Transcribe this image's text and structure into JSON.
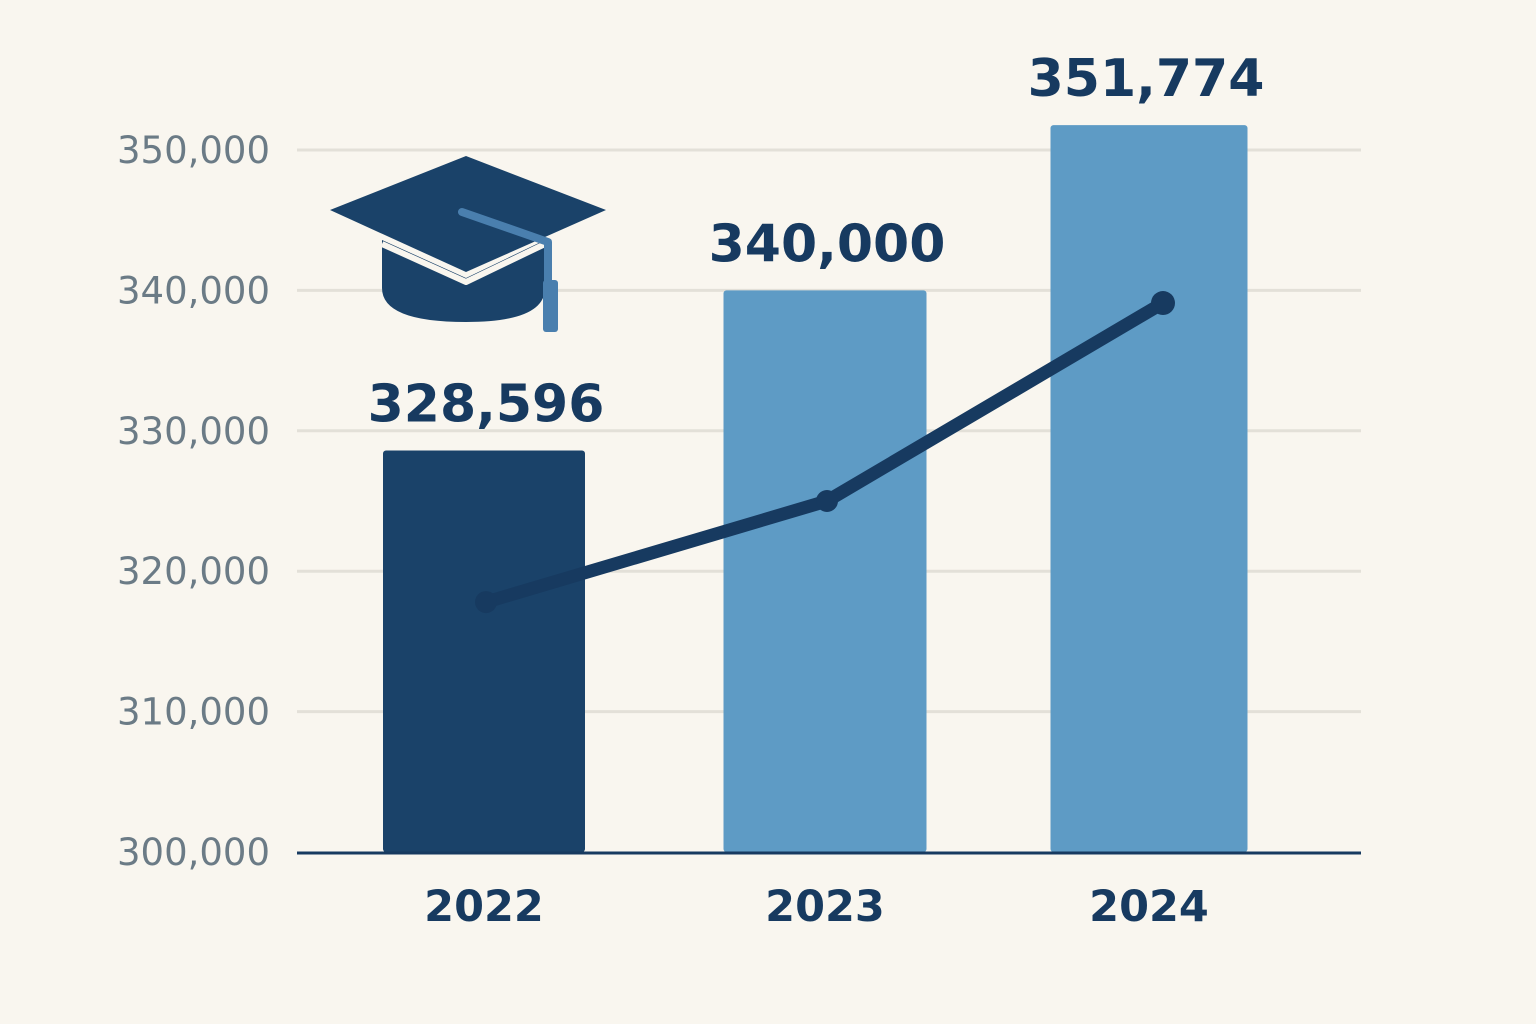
{
  "chart_data": {
    "type": "bar",
    "categories": [
      "2022",
      "2023",
      "2024"
    ],
    "values": [
      328596,
      340000,
      351774
    ],
    "value_labels": [
      "328,596",
      "340,000",
      "351,774"
    ],
    "line_values": [
      317800,
      325000,
      339100
    ],
    "ylim": [
      300000,
      350000
    ],
    "y_ticks": [
      300000,
      310000,
      320000,
      330000,
      340000,
      350000
    ],
    "y_tick_labels": [
      "300,000",
      "310,000",
      "320,000",
      "330,000",
      "340,000",
      "350,000"
    ],
    "bar_colors": [
      "#1a4269",
      "#5e9bc5",
      "#5e9bc5"
    ],
    "line_color": "#173a60",
    "grid": true,
    "legend": "none",
    "title": "",
    "xlabel": "",
    "ylabel": ""
  },
  "decoration": {
    "icon": "graduation-cap-icon",
    "icon_color": "#1a4269",
    "icon_accent": "#4a7fae"
  }
}
